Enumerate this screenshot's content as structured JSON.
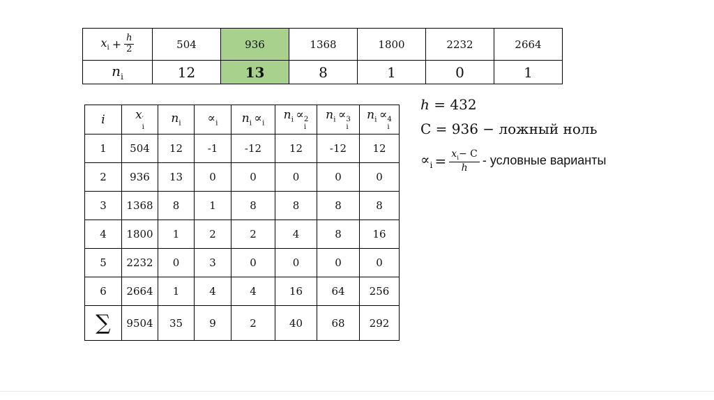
{
  "top_table": {
    "header": {
      "x": "x",
      "x_sub": "i",
      "plus": "+",
      "frac_num": "h",
      "frac_den": "2"
    },
    "row_label": {
      "v": "n",
      "sub": "i"
    },
    "values": [
      "504",
      "936",
      "1368",
      "1800",
      "2232",
      "2664"
    ],
    "frequencies": [
      "12",
      "13",
      "8",
      "1",
      "0",
      "1"
    ],
    "highlight_column": 1,
    "highlight_color": "#a9d18e"
  },
  "calc_table": {
    "headers": [
      {
        "v": "i"
      },
      {
        "v": "x",
        "sub": "i",
        "sup": "′"
      },
      {
        "v": "n",
        "sub": "i"
      },
      {
        "v": "∝",
        "sub": "i"
      },
      {
        "pre": "n",
        "pre_sub": "i",
        "v": "∝",
        "sub": "i"
      },
      {
        "pre": "n",
        "pre_sub": "i",
        "v": "∝",
        "sub": "i",
        "sup": "2"
      },
      {
        "pre": "n",
        "pre_sub": "i",
        "v": "∝",
        "sub": "i",
        "sup": "3"
      },
      {
        "pre": "n",
        "pre_sub": "i",
        "v": "∝",
        "sub": "i",
        "sup": "4"
      }
    ],
    "rows": [
      [
        "1",
        "504",
        "12",
        "-1",
        "-12",
        "12",
        "-12",
        "12"
      ],
      [
        "2",
        "936",
        "13",
        "0",
        "0",
        "0",
        "0",
        "0"
      ],
      [
        "3",
        "1368",
        "8",
        "1",
        "8",
        "8",
        "8",
        "8"
      ],
      [
        "4",
        "1800",
        "1",
        "2",
        "2",
        "4",
        "8",
        "16"
      ],
      [
        "5",
        "2232",
        "0",
        "3",
        "0",
        "0",
        "0",
        "0"
      ],
      [
        "6",
        "2664",
        "1",
        "4",
        "4",
        "16",
        "64",
        "256"
      ]
    ],
    "sum_row": {
      "label": "∑",
      "values": [
        "9504",
        "35",
        "9",
        "2",
        "40",
        "68",
        "292"
      ]
    }
  },
  "notes": {
    "line1_var": "h",
    "line1_rest": "= 432",
    "line2": "C = 936  − ложный ноль",
    "formula": {
      "alpha": "∝",
      "alpha_sub": "i",
      "eq": "=",
      "num_x": "x",
      "num_x_sub": "i",
      "num_rest": "− C",
      "den": "h",
      "suffix": "- условные варианты"
    }
  }
}
